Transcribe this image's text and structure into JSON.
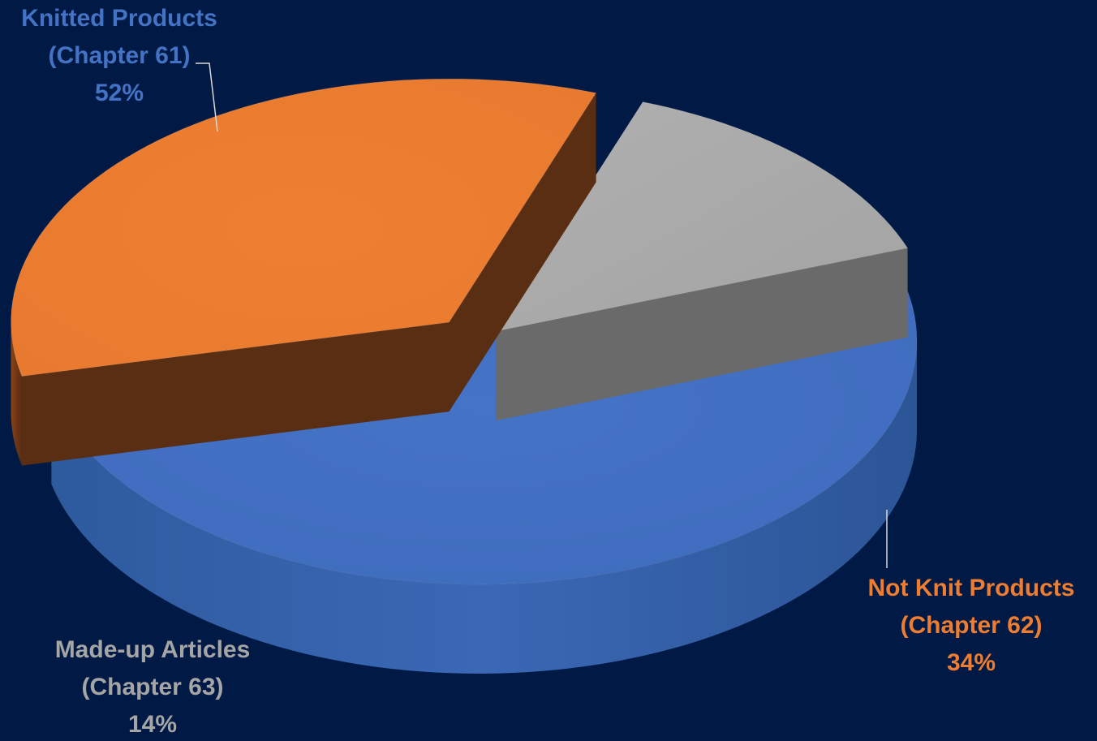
{
  "chart_data": {
    "type": "pie",
    "style": "3d-exploded",
    "background": "#001a45",
    "slices": [
      {
        "label_line1": "Knitted Products",
        "label_line2": "(Chapter 61)",
        "percent_label": "52%",
        "value": 52,
        "color": "#4472c4",
        "label_color": "#4472c4",
        "label_position": "top-left"
      },
      {
        "label_line1": "Not Knit Products",
        "label_line2": "(Chapter 62)",
        "percent_label": "34%",
        "value": 34,
        "color": "#ed7d31",
        "label_color": "#ed7d31",
        "label_position": "bottom-right"
      },
      {
        "label_line1": "Made-up Articles",
        "label_line2": "(Chapter 63)",
        "percent_label": "14%",
        "value": 14,
        "color": "#a5a5a5",
        "label_color": "#a5a5a5",
        "label_position": "bottom-left"
      }
    ]
  }
}
